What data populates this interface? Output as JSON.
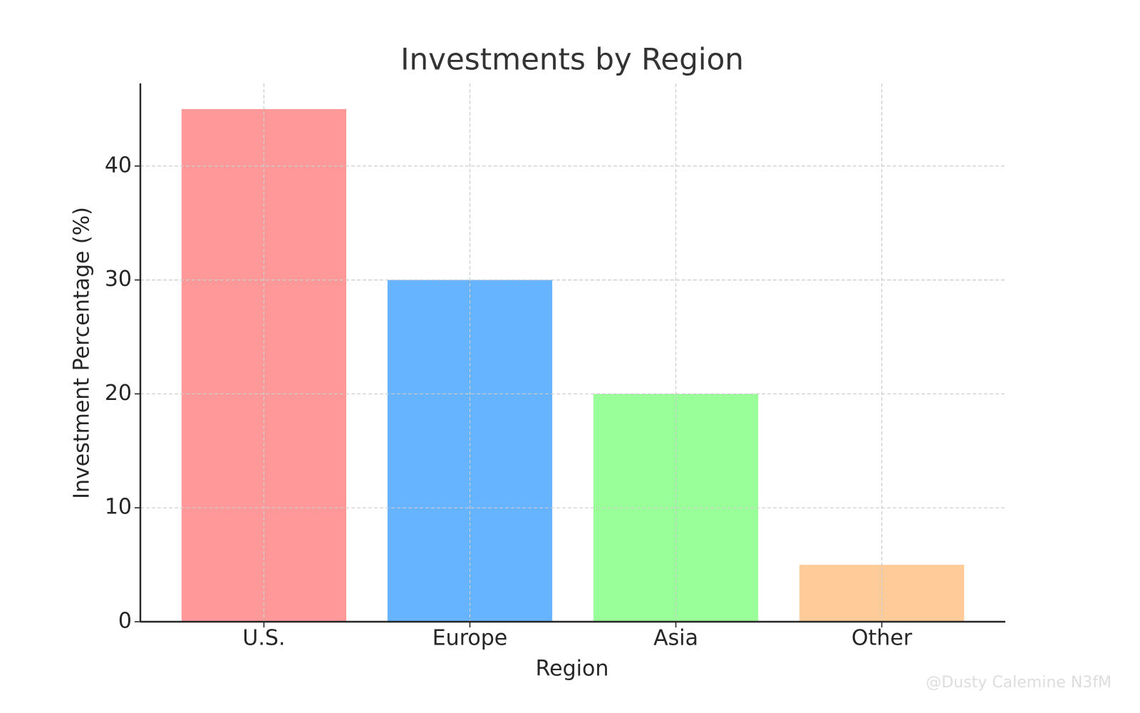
{
  "chart_data": {
    "type": "bar",
    "title": "Investments by Region",
    "x_label": "Region",
    "y_label": "Investment Percentage (%)",
    "categories": [
      "U.S.",
      "Europe",
      "Asia",
      "Other"
    ],
    "values": [
      45,
      30,
      20,
      5
    ],
    "colors": [
      "#ff9999",
      "#66b3ff",
      "#99ff99",
      "#ffcc99"
    ],
    "ylim": [
      0,
      47.25
    ],
    "yticks": [
      0,
      10,
      20,
      30,
      40
    ],
    "grid": true,
    "watermark": "@Dusty Calemine N3fM"
  }
}
